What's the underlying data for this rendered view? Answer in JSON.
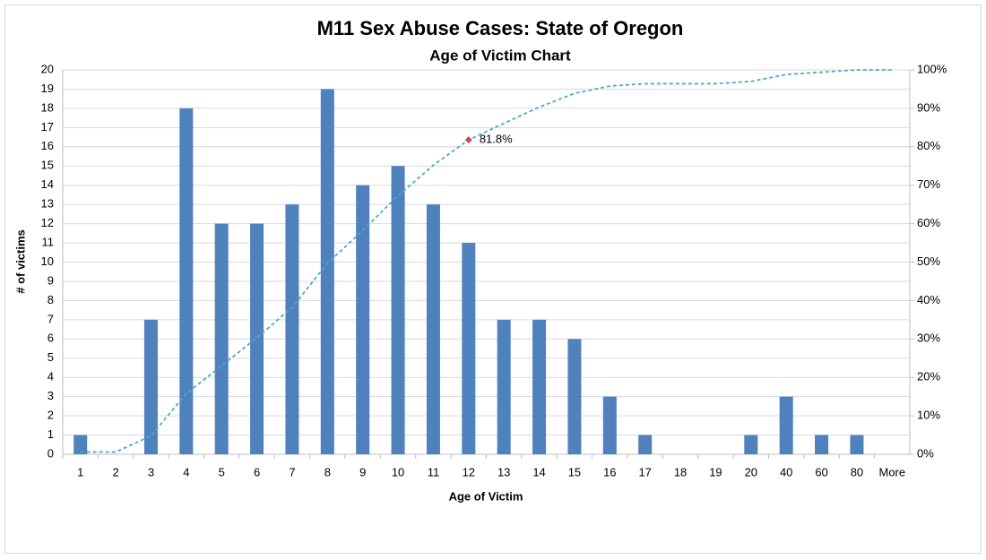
{
  "chart_data": {
    "type": "bar",
    "title": "M11 Sex Abuse Cases: State of Oregon",
    "subtitle": "Age of Victim Chart",
    "x_label": "Age of Victim",
    "y_label": "# of victims",
    "categories": [
      "1",
      "2",
      "3",
      "4",
      "5",
      "6",
      "7",
      "8",
      "9",
      "10",
      "11",
      "12",
      "13",
      "14",
      "15",
      "16",
      "17",
      "18",
      "19",
      "20",
      "40",
      "60",
      "80",
      "More"
    ],
    "series": [
      {
        "type": "bar",
        "color": "#4f81bd",
        "values": [
          1,
          0,
          7,
          18,
          12,
          12,
          13,
          19,
          14,
          15,
          13,
          11,
          7,
          7,
          6,
          3,
          1,
          0,
          0,
          1,
          3,
          1,
          1,
          0
        ]
      },
      {
        "type": "line",
        "axis": "y2",
        "color": "#4bacc6",
        "marker_color": "#c0504d",
        "values": [
          0.6,
          0.6,
          4.8,
          15.8,
          23.0,
          30.3,
          38.2,
          49.7,
          58.2,
          67.3,
          75.2,
          81.8,
          86.1,
          90.3,
          93.9,
          95.8,
          96.4,
          96.4,
          96.4,
          97.0,
          98.8,
          99.4,
          100,
          100
        ],
        "value_labels": [
          null,
          null,
          null,
          null,
          null,
          null,
          null,
          null,
          null,
          null,
          null,
          "81.8%",
          null,
          null,
          null,
          null,
          null,
          null,
          null,
          null,
          null,
          null,
          null,
          null
        ]
      }
    ],
    "ylim": [
      0,
      20
    ],
    "yticks": [
      0,
      1,
      2,
      3,
      4,
      5,
      6,
      7,
      8,
      9,
      10,
      11,
      12,
      13,
      14,
      15,
      16,
      17,
      18,
      19,
      20
    ],
    "y2lim": [
      0,
      100
    ],
    "y2ticks": [
      {
        "value": 0,
        "label": "0%"
      },
      {
        "value": 10,
        "label": "10%"
      },
      {
        "value": 20,
        "label": "20%"
      },
      {
        "value": 30,
        "label": "30%"
      },
      {
        "value": 40,
        "label": "40%"
      },
      {
        "value": 50,
        "label": "50%"
      },
      {
        "value": 60,
        "label": "60%"
      },
      {
        "value": 70,
        "label": "70%"
      },
      {
        "value": 80,
        "label": "80%"
      },
      {
        "value": 90,
        "label": "90%"
      },
      {
        "value": 100,
        "label": "100%"
      }
    ],
    "grid": true
  }
}
